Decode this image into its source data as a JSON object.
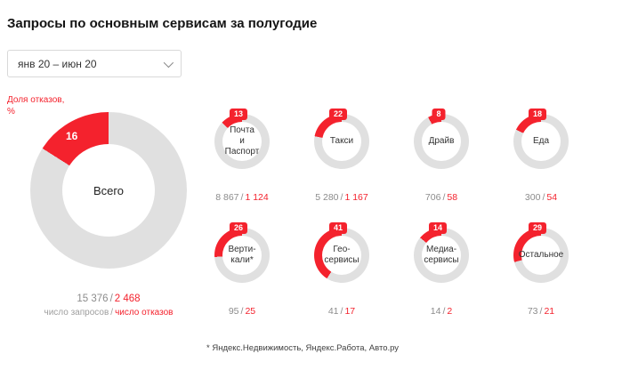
{
  "page": {
    "title": "Запросы по основным сервисам за полугодие"
  },
  "filter": {
    "value": "янв 20 – июн 20",
    "chevron_icon": "chevron-down"
  },
  "colors": {
    "accent": "#f4222d",
    "ring": "#e0e0e0"
  },
  "footnote": "* Яндекс.Недвижимость, Яндекс.Работа, Авто.ру",
  "chart_data": {
    "type": "donut",
    "unit_label": "Доля отказов, %",
    "separator": "/",
    "legend_position": "top-left",
    "total": {
      "label": "Всего",
      "percent": 16,
      "requests": "15 376",
      "failures": "2 468",
      "requests_caption": "число запросов",
      "failures_caption": "число отказов"
    },
    "services": [
      {
        "label": "Почта\nи Паспорт",
        "percent": 13,
        "requests": "8 867",
        "failures": "1 124"
      },
      {
        "label": "Такси",
        "percent": 22,
        "requests": "5 280",
        "failures": "1 167"
      },
      {
        "label": "Драйв",
        "percent": 8,
        "requests": "706",
        "failures": "58"
      },
      {
        "label": "Еда",
        "percent": 18,
        "requests": "300",
        "failures": "54"
      },
      {
        "label": "Верти-\nкали*",
        "percent": 26,
        "requests": "95",
        "failures": "25"
      },
      {
        "label": "Гео-\nсервисы",
        "percent": 41,
        "requests": "41",
        "failures": "17"
      },
      {
        "label": "Медиа-\nсервисы",
        "percent": 14,
        "requests": "14",
        "failures": "2"
      },
      {
        "label": "Остальное",
        "percent": 29,
        "requests": "73",
        "failures": "21"
      }
    ]
  }
}
